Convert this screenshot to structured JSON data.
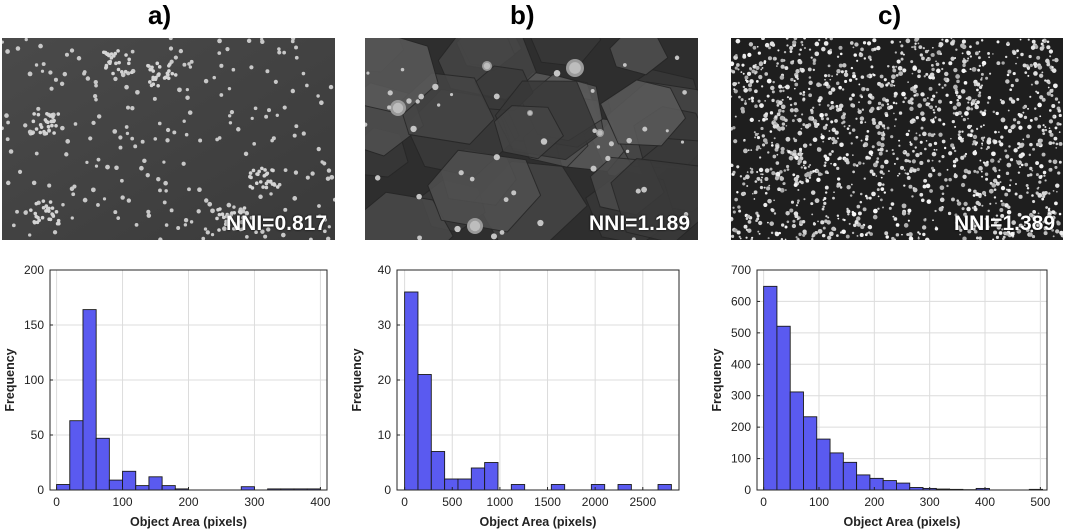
{
  "panels": [
    {
      "label": "a)",
      "nni_text": "NNI=0.817"
    },
    {
      "label": "b)",
      "nni_text": "NNI=1.189"
    },
    {
      "label": "c)",
      "nni_text": "NNI=1.389"
    }
  ],
  "chart_data": [
    {
      "type": "bar",
      "xlabel": "Object Area (pixels)",
      "ylabel": "Frequency",
      "xlim": [
        -10,
        410
      ],
      "ylim": [
        0,
        200
      ],
      "xticks": [
        0,
        100,
        200,
        300,
        400
      ],
      "yticks": [
        0,
        50,
        100,
        150,
        200
      ],
      "bin_width": 20,
      "bin_starts": [
        0,
        20,
        40,
        60,
        80,
        100,
        120,
        140,
        160,
        180,
        200,
        220,
        240,
        260,
        280,
        300,
        320,
        340,
        360,
        380
      ],
      "values": [
        5,
        63,
        164,
        47,
        9,
        17,
        4,
        12,
        4,
        1,
        0,
        0,
        0,
        0,
        3,
        0,
        1,
        1,
        1,
        1
      ],
      "grid": true,
      "bar_color": "#5a5af0"
    },
    {
      "type": "bar",
      "xlabel": "Object Area (pixels)",
      "ylabel": "Frequency",
      "xlim": [
        -80,
        2880
      ],
      "ylim": [
        0,
        40
      ],
      "xticks": [
        0,
        500,
        1000,
        1500,
        2000,
        2500
      ],
      "yticks": [
        0,
        10,
        20,
        30,
        40
      ],
      "bin_width": 140,
      "bin_starts": [
        0,
        140,
        280,
        420,
        560,
        700,
        840,
        980,
        1120,
        1260,
        1400,
        1540,
        1680,
        1820,
        1960,
        2100,
        2240,
        2380,
        2520,
        2660
      ],
      "values": [
        36,
        21,
        7,
        2,
        2,
        4,
        5,
        0,
        1,
        0,
        0,
        1,
        0,
        0,
        1,
        0,
        1,
        0,
        0,
        1
      ],
      "grid": true,
      "bar_color": "#5a5af0"
    },
    {
      "type": "bar",
      "xlabel": "Object Area (pixels)",
      "ylabel": "Frequency",
      "xlim": [
        -12,
        512
      ],
      "ylim": [
        0,
        700
      ],
      "xticks": [
        0,
        100,
        200,
        300,
        400,
        500
      ],
      "yticks": [
        0,
        100,
        200,
        300,
        400,
        500,
        600,
        700
      ],
      "bin_width": 24,
      "bin_starts": [
        0,
        24,
        48,
        72,
        96,
        120,
        144,
        168,
        192,
        216,
        240,
        264,
        288,
        312,
        336,
        360,
        384,
        408,
        432,
        456,
        480
      ],
      "values": [
        648,
        521,
        312,
        233,
        162,
        118,
        88,
        48,
        37,
        30,
        22,
        8,
        5,
        3,
        2,
        1,
        5,
        0,
        0,
        0,
        2
      ],
      "grid": true,
      "bar_color": "#5a5af0"
    }
  ]
}
